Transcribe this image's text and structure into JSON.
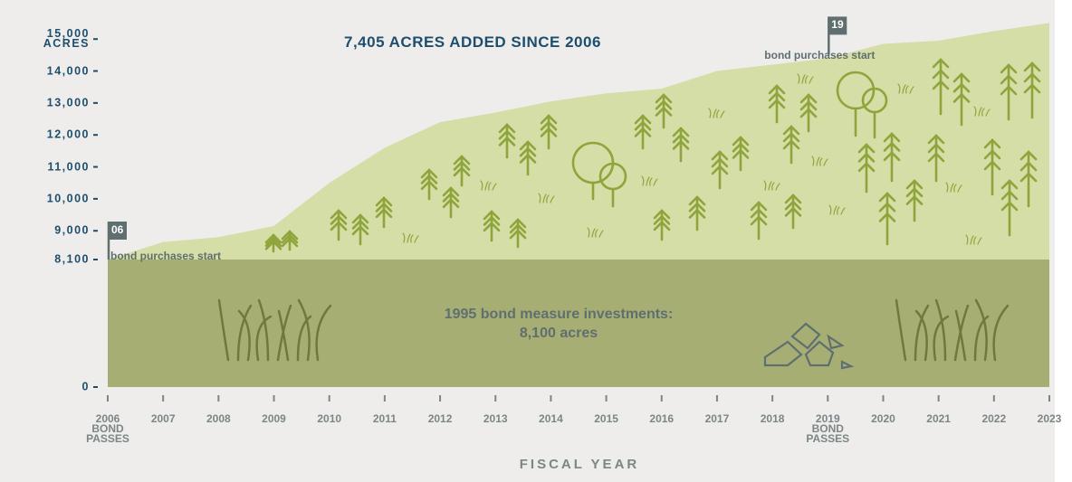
{
  "chart_data": {
    "type": "area",
    "title": "7,405 ACRES ADDED SINCE 2006",
    "x_label": "FISCAL YEAR",
    "categories": [
      "2006\nBOND\nPASSES",
      "2007",
      "2008",
      "2009",
      "2010",
      "2011",
      "2012",
      "2013",
      "2014",
      "2015",
      "2016",
      "2017",
      "2018",
      "2019\nBOND\nPASSES",
      "2020",
      "2021",
      "2022",
      "2023"
    ],
    "series": [
      {
        "color": "#d4dea6",
        "values": [
          8100,
          8650,
          8800,
          9150,
          10500,
          11600,
          12400,
          12700,
          13050,
          13300,
          13450,
          14000,
          14200,
          14400,
          14850,
          14950,
          15250,
          15505
        ]
      }
    ],
    "base": {
      "label": "1995 bond measure investments:\n8,100 acres",
      "value": 8100,
      "color": "#a7ae74"
    },
    "flags": [
      "06",
      null,
      null,
      null,
      null,
      null,
      null,
      null,
      null,
      null,
      null,
      null,
      null,
      "19",
      null,
      null,
      null,
      null
    ],
    "flag_notes": [
      "bond purchases start",
      null,
      null,
      null,
      null,
      null,
      null,
      null,
      null,
      null,
      null,
      null,
      null,
      "bond purchases start",
      null,
      null,
      null,
      null
    ],
    "ylim": [
      0,
      15600
    ],
    "yticks": [
      0,
      {
        "value": 8100,
        "label": "8,100"
      },
      {
        "value": 9000,
        "label": "9,000"
      },
      {
        "value": 10000,
        "label": "10,000"
      },
      {
        "value": 11000,
        "label": "11,000"
      },
      {
        "value": 12000,
        "label": "12,000"
      },
      {
        "value": 13000,
        "label": "13,000"
      },
      {
        "value": 14000,
        "label": "14,000"
      },
      {
        "value": 15000,
        "label": "15,000\nACRES"
      }
    ]
  }
}
